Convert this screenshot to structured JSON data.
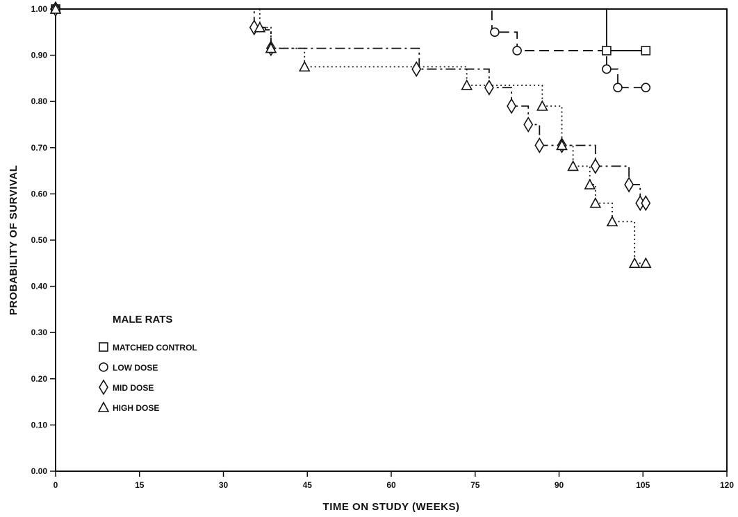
{
  "chart_data": {
    "type": "line",
    "title": "",
    "xlabel": "TIME ON STUDY (WEEKS)",
    "ylabel": "PROBABILITY OF SURVIVAL",
    "xlim": [
      0,
      120
    ],
    "ylim": [
      0,
      1.0
    ],
    "x_ticks": [
      "0",
      "15",
      "30",
      "45",
      "60",
      "75",
      "90",
      "105",
      "120"
    ],
    "y_ticks": [
      "0.00",
      "0.10",
      "0.20",
      "0.30",
      "0.40",
      "0.50",
      "0.60",
      "0.70",
      "0.80",
      "0.90",
      "1.00"
    ],
    "grid": false,
    "legend": {
      "title": "MALE RATS",
      "placement": "lower-left"
    },
    "series": [
      {
        "name": "MATCHED CONTROL",
        "marker": "square",
        "line_style": "solid",
        "steps": [
          [
            0,
            1.0
          ],
          [
            98.5,
            0.91
          ],
          [
            105.5,
            0.91
          ]
        ],
        "markers": [
          [
            0,
            1.0
          ],
          [
            98.5,
            0.91
          ],
          [
            105.5,
            0.91
          ]
        ]
      },
      {
        "name": "LOW DOSE",
        "marker": "circle",
        "line_style": "dashed",
        "steps": [
          [
            0,
            1.0
          ],
          [
            78,
            0.95
          ],
          [
            82.5,
            0.91
          ],
          [
            98.5,
            0.87
          ],
          [
            100.5,
            0.83
          ],
          [
            105.5,
            0.83
          ]
        ],
        "markers": [
          [
            0,
            1.0
          ],
          [
            78.5,
            0.95
          ],
          [
            82.5,
            0.91
          ],
          [
            98.5,
            0.87
          ],
          [
            100.5,
            0.83
          ],
          [
            105.5,
            0.83
          ]
        ]
      },
      {
        "name": "MID DOSE",
        "marker": "diamond",
        "line_style": "dashdot",
        "steps": [
          [
            0,
            1.0
          ],
          [
            35.5,
            0.96
          ],
          [
            37.5,
            0.955
          ],
          [
            38.5,
            0.915
          ],
          [
            65,
            0.87
          ],
          [
            77.5,
            0.83
          ],
          [
            81.5,
            0.79
          ],
          [
            84.5,
            0.75
          ],
          [
            86.5,
            0.705
          ],
          [
            96.5,
            0.66
          ],
          [
            102.5,
            0.62
          ],
          [
            104.5,
            0.58
          ],
          [
            105.5,
            0.58
          ]
        ],
        "markers": [
          [
            0,
            1.0
          ],
          [
            35.5,
            0.96
          ],
          [
            38.5,
            0.915
          ],
          [
            64.5,
            0.87
          ],
          [
            77.5,
            0.83
          ],
          [
            81.5,
            0.79
          ],
          [
            84.5,
            0.75
          ],
          [
            86.5,
            0.705
          ],
          [
            90.5,
            0.705
          ],
          [
            96.5,
            0.66
          ],
          [
            102.5,
            0.62
          ],
          [
            104.5,
            0.58
          ],
          [
            105.5,
            0.58
          ]
        ]
      },
      {
        "name": "HIGH DOSE",
        "marker": "triangle",
        "line_style": "dotted",
        "steps": [
          [
            0,
            1.0
          ],
          [
            36.5,
            0.96
          ],
          [
            38.5,
            0.915
          ],
          [
            44.5,
            0.875
          ],
          [
            73.5,
            0.835
          ],
          [
            87,
            0.79
          ],
          [
            90.5,
            0.705
          ],
          [
            92.5,
            0.66
          ],
          [
            95.5,
            0.62
          ],
          [
            96.5,
            0.58
          ],
          [
            99.5,
            0.54
          ],
          [
            103.5,
            0.45
          ],
          [
            105.5,
            0.45
          ]
        ],
        "markers": [
          [
            0,
            1.0
          ],
          [
            36.5,
            0.96
          ],
          [
            38.5,
            0.915
          ],
          [
            44.5,
            0.875
          ],
          [
            73.5,
            0.835
          ],
          [
            87,
            0.79
          ],
          [
            90.5,
            0.705
          ],
          [
            92.5,
            0.66
          ],
          [
            95.5,
            0.62
          ],
          [
            96.5,
            0.58
          ],
          [
            99.5,
            0.54
          ],
          [
            103.5,
            0.45
          ],
          [
            105.5,
            0.45
          ]
        ]
      }
    ]
  }
}
